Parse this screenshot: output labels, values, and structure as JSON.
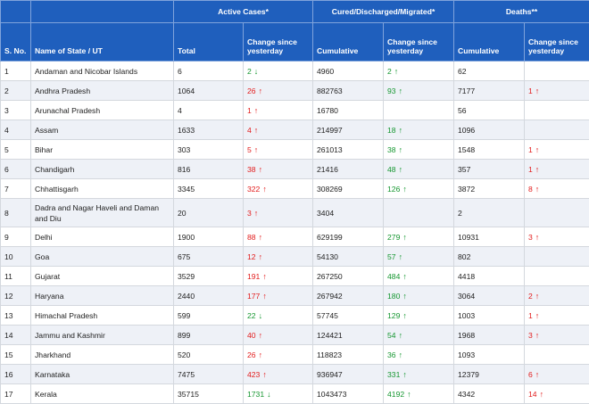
{
  "headers": {
    "sno": "S. No.",
    "name": "Name of State / UT",
    "active_group": "Active Cases*",
    "cured_group": "Cured/Discharged/Migrated*",
    "deaths_group": "Deaths**",
    "total": "Total",
    "change": "Change since yesterday",
    "cumulative": "Cumulative"
  },
  "colors": {
    "header_bg": "#1f5fbd",
    "increase": "#e21b1b",
    "decrease": "#14962f",
    "stripe": "#eef1f7"
  },
  "rows": [
    {
      "sno": "1",
      "name": "Andaman and Nicobar Islands",
      "active": "6",
      "active_change": "2",
      "active_dir": "down",
      "active_color": "green",
      "cured": "4960",
      "cured_change": "2",
      "cured_dir": "up",
      "deaths": "62",
      "deaths_change": "",
      "deaths_dir": ""
    },
    {
      "sno": "2",
      "name": "Andhra Pradesh",
      "active": "1064",
      "active_change": "26",
      "active_dir": "up",
      "active_color": "red",
      "cured": "882763",
      "cured_change": "93",
      "cured_dir": "up",
      "deaths": "7177",
      "deaths_change": "1",
      "deaths_dir": "up"
    },
    {
      "sno": "3",
      "name": "Arunachal Pradesh",
      "active": "4",
      "active_change": "1",
      "active_dir": "up",
      "active_color": "red",
      "cured": "16780",
      "cured_change": "",
      "cured_dir": "",
      "deaths": "56",
      "deaths_change": "",
      "deaths_dir": ""
    },
    {
      "sno": "4",
      "name": "Assam",
      "active": "1633",
      "active_change": "4",
      "active_dir": "up",
      "active_color": "red",
      "cured": "214997",
      "cured_change": "18",
      "cured_dir": "up",
      "deaths": "1096",
      "deaths_change": "",
      "deaths_dir": ""
    },
    {
      "sno": "5",
      "name": "Bihar",
      "active": "303",
      "active_change": "5",
      "active_dir": "up",
      "active_color": "red",
      "cured": "261013",
      "cured_change": "38",
      "cured_dir": "up",
      "deaths": "1548",
      "deaths_change": "1",
      "deaths_dir": "up"
    },
    {
      "sno": "6",
      "name": "Chandigarh",
      "active": "816",
      "active_change": "38",
      "active_dir": "up",
      "active_color": "red",
      "cured": "21416",
      "cured_change": "48",
      "cured_dir": "up",
      "deaths": "357",
      "deaths_change": "1",
      "deaths_dir": "up"
    },
    {
      "sno": "7",
      "name": "Chhattisgarh",
      "active": "3345",
      "active_change": "322",
      "active_dir": "up",
      "active_color": "red",
      "cured": "308269",
      "cured_change": "126",
      "cured_dir": "up",
      "deaths": "3872",
      "deaths_change": "8",
      "deaths_dir": "up"
    },
    {
      "sno": "8",
      "name": "Dadra and Nagar Haveli and Daman and Diu",
      "active": "20",
      "active_change": "3",
      "active_dir": "up",
      "active_color": "red",
      "cured": "3404",
      "cured_change": "",
      "cured_dir": "",
      "deaths": "2",
      "deaths_change": "",
      "deaths_dir": "",
      "tall": true
    },
    {
      "sno": "9",
      "name": "Delhi",
      "active": "1900",
      "active_change": "88",
      "active_dir": "up",
      "active_color": "red",
      "cured": "629199",
      "cured_change": "279",
      "cured_dir": "up",
      "deaths": "10931",
      "deaths_change": "3",
      "deaths_dir": "up"
    },
    {
      "sno": "10",
      "name": "Goa",
      "active": "675",
      "active_change": "12",
      "active_dir": "up",
      "active_color": "red",
      "cured": "54130",
      "cured_change": "57",
      "cured_dir": "up",
      "deaths": "802",
      "deaths_change": "",
      "deaths_dir": ""
    },
    {
      "sno": "11",
      "name": "Gujarat",
      "active": "3529",
      "active_change": "191",
      "active_dir": "up",
      "active_color": "red",
      "cured": "267250",
      "cured_change": "484",
      "cured_dir": "up",
      "deaths": "4418",
      "deaths_change": "",
      "deaths_dir": ""
    },
    {
      "sno": "12",
      "name": "Haryana",
      "active": "2440",
      "active_change": "177",
      "active_dir": "up",
      "active_color": "red",
      "cured": "267942",
      "cured_change": "180",
      "cured_dir": "up",
      "deaths": "3064",
      "deaths_change": "2",
      "deaths_dir": "up"
    },
    {
      "sno": "13",
      "name": "Himachal Pradesh",
      "active": "599",
      "active_change": "22",
      "active_dir": "down",
      "active_color": "green",
      "cured": "57745",
      "cured_change": "129",
      "cured_dir": "up",
      "deaths": "1003",
      "deaths_change": "1",
      "deaths_dir": "up"
    },
    {
      "sno": "14",
      "name": "Jammu and Kashmir",
      "active": "899",
      "active_change": "40",
      "active_dir": "up",
      "active_color": "red",
      "cured": "124421",
      "cured_change": "54",
      "cured_dir": "up",
      "deaths": "1968",
      "deaths_change": "3",
      "deaths_dir": "up"
    },
    {
      "sno": "15",
      "name": "Jharkhand",
      "active": "520",
      "active_change": "26",
      "active_dir": "up",
      "active_color": "red",
      "cured": "118823",
      "cured_change": "36",
      "cured_dir": "up",
      "deaths": "1093",
      "deaths_change": "",
      "deaths_dir": ""
    },
    {
      "sno": "16",
      "name": "Karnataka",
      "active": "7475",
      "active_change": "423",
      "active_dir": "up",
      "active_color": "red",
      "cured": "936947",
      "cured_change": "331",
      "cured_dir": "up",
      "deaths": "12379",
      "deaths_change": "6",
      "deaths_dir": "up"
    },
    {
      "sno": "17",
      "name": "Kerala",
      "active": "35715",
      "active_change": "1731",
      "active_dir": "down",
      "active_color": "green",
      "cured": "1043473",
      "cured_change": "4192",
      "cured_dir": "up",
      "deaths": "4342",
      "deaths_change": "14",
      "deaths_dir": "up"
    }
  ]
}
